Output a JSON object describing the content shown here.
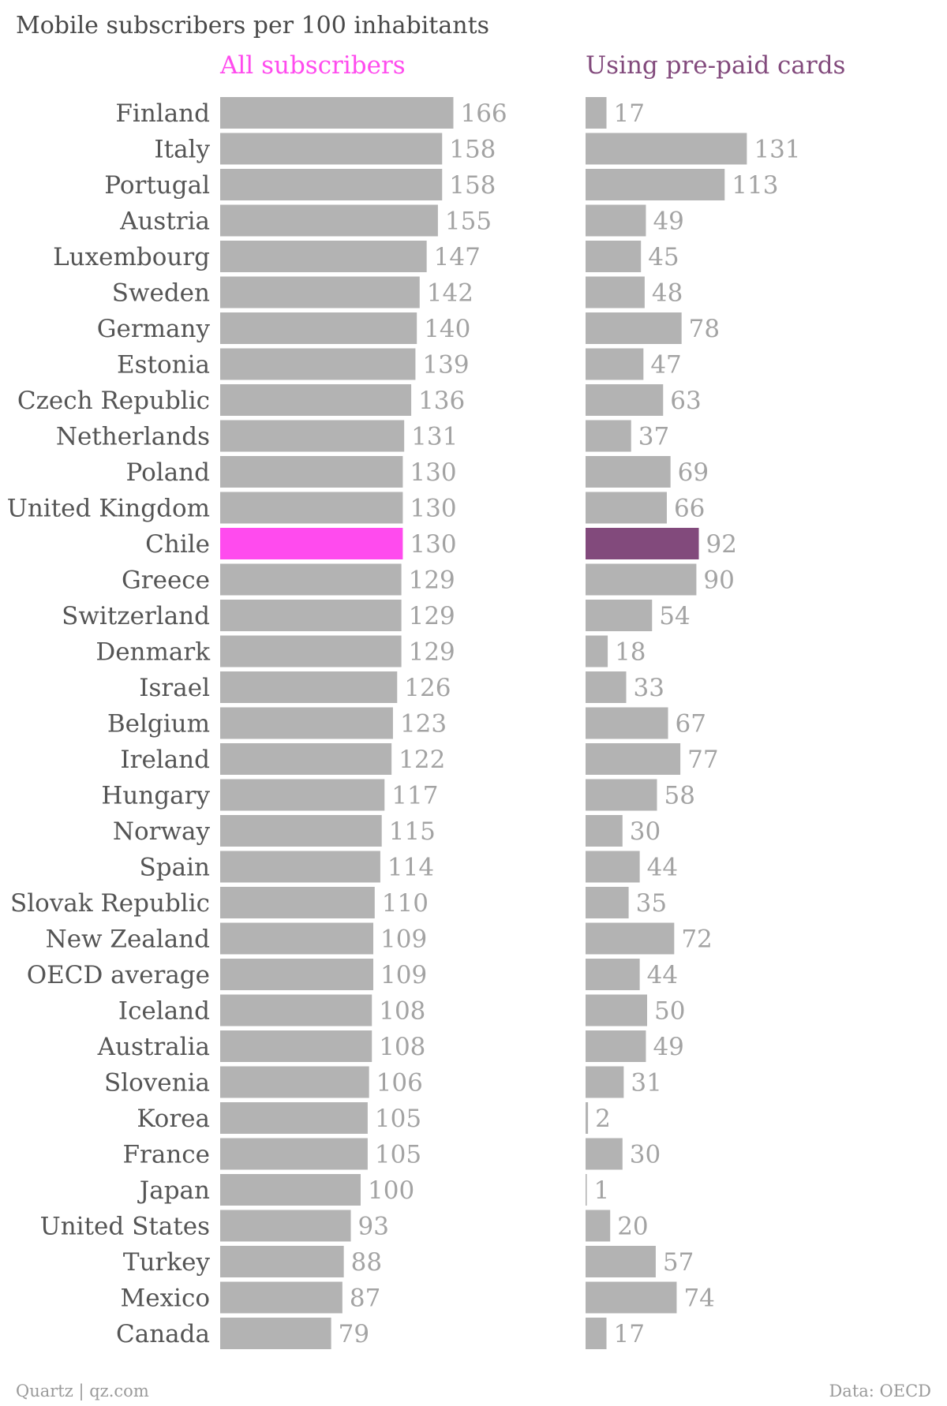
{
  "title": "Mobile subscribers per 100 inhabitants",
  "footer": {
    "left": "Quartz | qz.com",
    "right": "Data: OECD"
  },
  "colors": {
    "bar": "#b3b3b3",
    "highlight_all": "#ff4bee",
    "highlight_prepaid": "#824a7c",
    "value": "#a3a3a3"
  },
  "chart_data": {
    "type": "bar",
    "orientation": "horizontal",
    "title": "Mobile subscribers per 100 inhabitants",
    "highlight": "Chile",
    "categories": [
      "Finland",
      "Italy",
      "Portugal",
      "Austria",
      "Luxembourg",
      "Sweden",
      "Germany",
      "Estonia",
      "Czech Republic",
      "Netherlands",
      "Poland",
      "United Kingdom",
      "Chile",
      "Greece",
      "Switzerland",
      "Denmark",
      "Israel",
      "Belgium",
      "Ireland",
      "Hungary",
      "Norway",
      "Spain",
      "Slovak Republic",
      "New Zealand",
      "OECD average",
      "Iceland",
      "Australia",
      "Slovenia",
      "Korea",
      "France",
      "Japan",
      "United States",
      "Turkey",
      "Mexico",
      "Canada"
    ],
    "series": [
      {
        "name": "All subscribers",
        "color": "#ff4bee",
        "values": [
          166,
          158,
          158,
          155,
          147,
          142,
          140,
          139,
          136,
          131,
          130,
          130,
          130,
          129,
          129,
          129,
          126,
          123,
          122,
          117,
          115,
          114,
          110,
          109,
          109,
          108,
          108,
          106,
          105,
          105,
          100,
          93,
          88,
          87,
          79
        ]
      },
      {
        "name": "Using pre-paid cards",
        "color": "#824a7c",
        "values": [
          17,
          131,
          113,
          49,
          45,
          48,
          78,
          47,
          63,
          37,
          69,
          66,
          92,
          90,
          54,
          18,
          33,
          67,
          77,
          58,
          30,
          44,
          35,
          72,
          44,
          50,
          49,
          31,
          2,
          30,
          1,
          20,
          57,
          74,
          17
        ]
      }
    ]
  }
}
